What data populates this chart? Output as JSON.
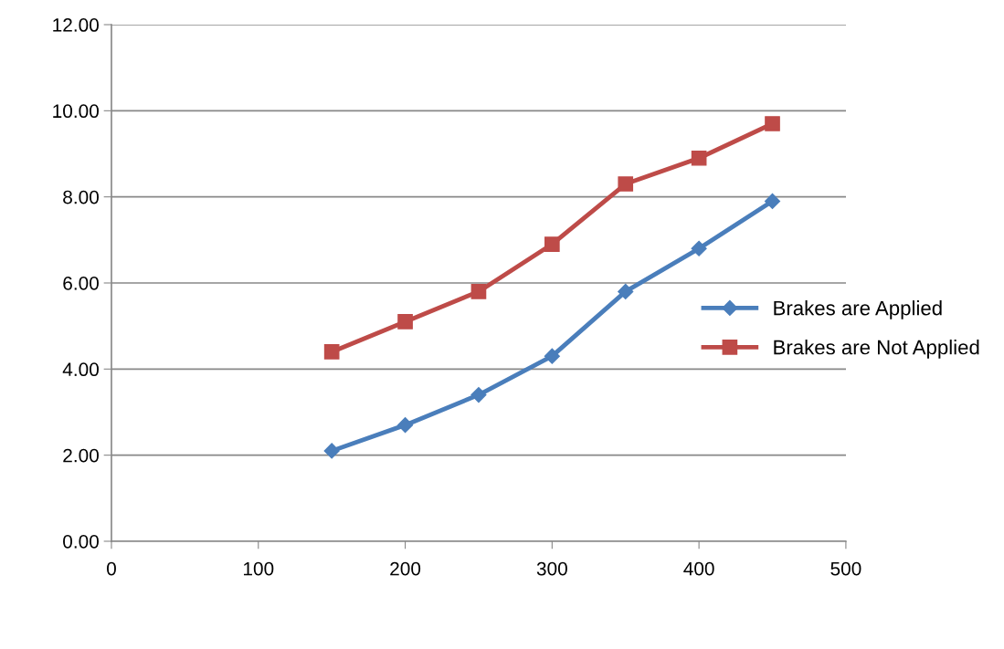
{
  "chart_data": {
    "type": "line",
    "x": [
      150,
      200,
      250,
      300,
      350,
      400,
      450
    ],
    "series": [
      {
        "name": "Brakes are Applied",
        "color": "#4a7ebb",
        "marker": "diamond",
        "values": [
          2.1,
          2.7,
          3.4,
          4.3,
          5.8,
          6.8,
          7.9
        ]
      },
      {
        "name": "Brakes are Not Applied",
        "color": "#be4b48",
        "marker": "square",
        "values": [
          4.4,
          5.1,
          5.8,
          6.9,
          8.3,
          8.9,
          9.7
        ]
      }
    ],
    "xlim": [
      0,
      500
    ],
    "xticks": [
      0,
      100,
      200,
      300,
      400,
      500
    ],
    "ylim": [
      0,
      12
    ],
    "yticks": [
      {
        "value": 0,
        "label": "0.00"
      },
      {
        "value": 2,
        "label": "2.00"
      },
      {
        "value": 4,
        "label": "4.00"
      },
      {
        "value": 6,
        "label": "6.00"
      },
      {
        "value": 8,
        "label": "8.00"
      },
      {
        "value": 10,
        "label": "10.00"
      },
      {
        "value": 12,
        "label": "12.00"
      }
    ],
    "grid": "y",
    "legend": "right",
    "line_style": "solid"
  }
}
